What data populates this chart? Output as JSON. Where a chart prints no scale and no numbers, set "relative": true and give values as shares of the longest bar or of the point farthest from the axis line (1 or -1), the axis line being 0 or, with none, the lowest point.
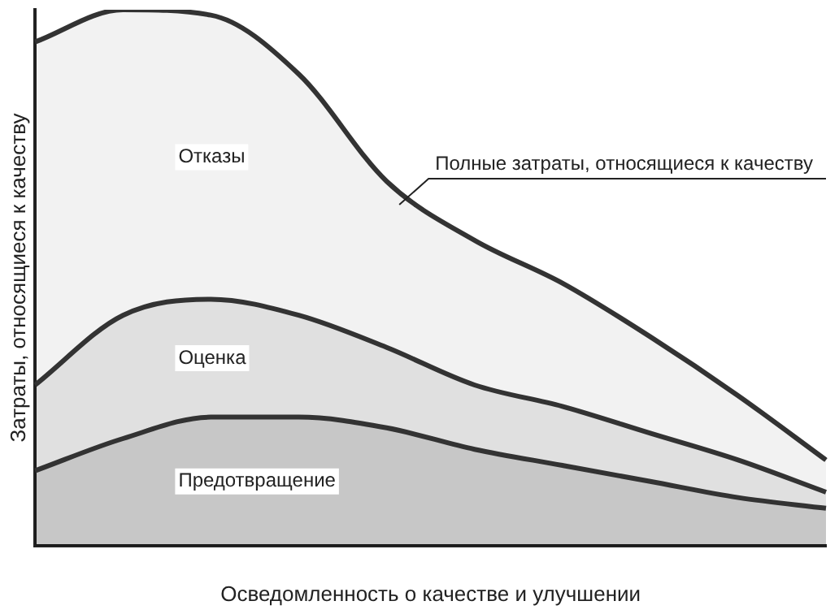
{
  "chart_data": {
    "type": "area",
    "stacked": true,
    "relative": true,
    "grid": false,
    "legend": false,
    "marker": "none",
    "line_style": "solid",
    "xlabel": "Осведомленность о качестве и улучшении",
    "ylabel": "Затраты, относящиеся к качеству",
    "annotations": [
      "Полные затраты, относящиеся к качеству"
    ],
    "categories": [
      null,
      null,
      null,
      null,
      null,
      null,
      null,
      null,
      null,
      null
    ],
    "series": [
      {
        "name": "Предотвращение",
        "color": "#333333",
        "values": [
          0.14,
          0.2,
          0.24,
          0.24,
          0.22,
          0.18,
          0.15,
          0.12,
          0.09,
          0.07
        ]
      },
      {
        "name": "Оценка",
        "color": "#333333",
        "values": [
          0.16,
          0.23,
          0.22,
          0.19,
          0.15,
          0.12,
          0.11,
          0.09,
          0.07,
          0.03
        ]
      },
      {
        "name": "Отказы",
        "color": "#333333",
        "values": [
          0.64,
          0.57,
          0.53,
          0.45,
          0.31,
          0.27,
          0.23,
          0.18,
          0.12,
          0.06
        ]
      }
    ]
  }
}
